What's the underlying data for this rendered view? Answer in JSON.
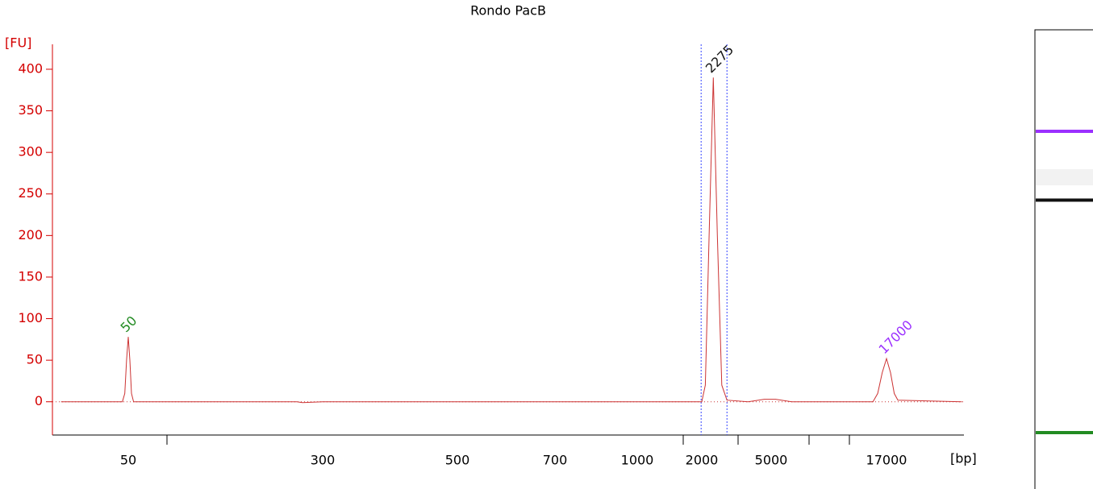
{
  "chart_data": {
    "type": "electropherogram",
    "title": "Rondo PacB",
    "y_label": "[FU]",
    "x_label": "[bp]",
    "ylim": [
      -40,
      430
    ],
    "yticks": [
      0,
      50,
      100,
      150,
      200,
      250,
      300,
      350,
      400
    ],
    "xticks": [
      50,
      300,
      500,
      700,
      1000,
      2000,
      5000,
      17000
    ],
    "minor_xticks": [
      100,
      1500,
      3000,
      7000,
      10000
    ],
    "series": [
      {
        "name": "Rondo PacB",
        "color": "#cc3333",
        "x": [
          15,
          45,
          47,
          48.5,
          50,
          51.5,
          53,
          55,
          250,
          260,
          300,
          2000,
          2080,
          2170,
          2275,
          2380,
          2500,
          2650,
          3500,
          4500,
          5200,
          6000,
          14000,
          15000,
          16000,
          17000,
          18000,
          19000,
          20000,
          50000
        ],
        "values": [
          0,
          0,
          10,
          50,
          78,
          50,
          10,
          0,
          0,
          -1,
          0,
          0,
          20,
          200,
          390,
          200,
          20,
          2,
          0,
          3,
          3,
          0,
          0,
          10,
          35,
          52,
          35,
          10,
          2,
          0
        ]
      }
    ],
    "region": [
      1980,
      2650
    ],
    "peaks": [
      {
        "size": 50,
        "height": 78,
        "color": "#228b22"
      },
      {
        "size": 2275,
        "height": 390,
        "color": "#111111"
      },
      {
        "size": 17000,
        "height": 52,
        "color": "#9b30ff"
      }
    ]
  }
}
